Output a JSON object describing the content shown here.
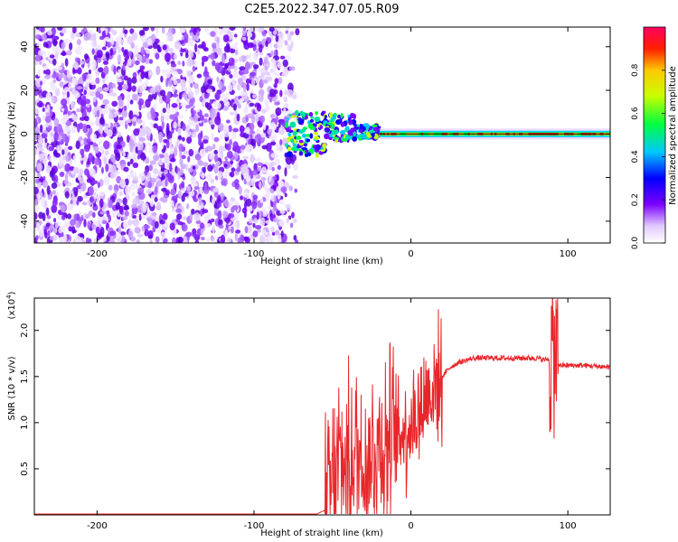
{
  "chart_data": [
    {
      "type": "heatmap",
      "title": "C2E5.2022.347.07.05.R09",
      "xlabel": "Height of straight line (km)",
      "ylabel": "Frequency (Hz)",
      "xlim": [
        -240,
        127
      ],
      "ylim": [
        -50,
        49
      ],
      "x_ticks": [
        -200,
        -100,
        0,
        100
      ],
      "y_ticks": [
        -40,
        -20,
        0,
        20,
        40
      ],
      "colorbar": {
        "label": "Normalized spectral amplitude",
        "range": [
          0,
          1
        ],
        "ticks": [
          "0.0",
          "0.2",
          "0.4",
          "0.6",
          "0.8"
        ],
        "colors": [
          "#ffffff",
          "#7a00ff",
          "#0000ff",
          "#00c8ff",
          "#00ff40",
          "#c8ff00",
          "#ffc800",
          "#ff2000",
          "#ff0060"
        ]
      },
      "regions": [
        {
          "x_range": [
            -240,
            -70
          ],
          "description_type": "noise",
          "freq_range": [
            -50,
            49
          ],
          "amplitude": 0.05
        },
        {
          "x_range": [
            -80,
            -20
          ],
          "description_type": "scatter",
          "freq_range": [
            -12,
            15
          ],
          "amplitude": 0.4
        },
        {
          "x_range": [
            -20,
            127
          ],
          "description_type": "tone",
          "freq_center": 0,
          "amplitude": 0.9
        }
      ]
    },
    {
      "type": "line",
      "xlabel": "Height of straight line (km)",
      "ylabel": "SNR (10 * v/v)",
      "yscale_label": "(x10",
      "yscale_exp": "4",
      "xlim": [
        -240,
        127
      ],
      "ylim": [
        0,
        2.35
      ],
      "x_ticks": [
        -200,
        -100,
        0,
        100
      ],
      "y_ticks": [
        "0.5",
        "1.0",
        "1.5",
        "2.0"
      ],
      "y_tick_values": [
        0.5,
        1.0,
        1.5,
        2.0
      ],
      "line_color": "#e8262a",
      "series": [
        {
          "x": [
            -240,
            -200,
            -150,
            -100,
            -60,
            -55,
            -50,
            -45,
            -40,
            -35,
            -30,
            -25,
            -20,
            -15,
            -10,
            -5,
            0,
            5,
            10,
            15,
            20,
            25,
            30,
            40,
            50,
            60,
            70,
            80,
            85,
            90,
            92,
            95,
            100,
            110,
            120,
            127
          ],
          "y": [
            0.01,
            0.01,
            0.01,
            0.01,
            0.01,
            0.05,
            0.3,
            0.6,
            0.5,
            0.7,
            0.6,
            0.65,
            0.8,
            0.8,
            0.85,
            0.9,
            1.0,
            1.1,
            1.3,
            1.4,
            1.5,
            1.6,
            1.65,
            1.7,
            1.7,
            1.7,
            1.7,
            1.7,
            1.68,
            1.7,
            1.7,
            1.62,
            1.62,
            1.62,
            1.61,
            1.6
          ]
        }
      ]
    }
  ]
}
